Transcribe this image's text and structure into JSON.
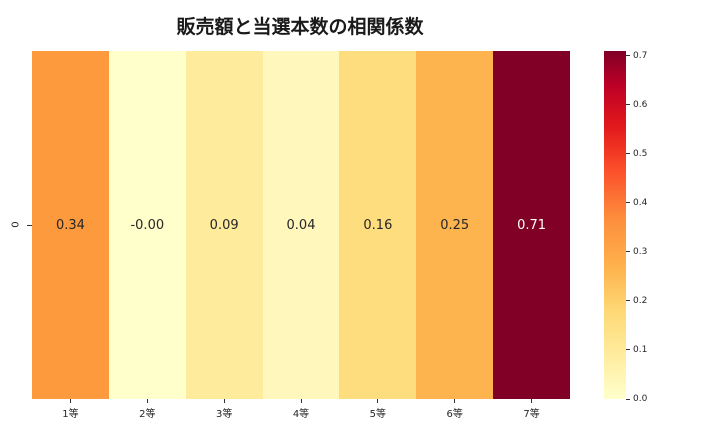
{
  "chart_data": {
    "type": "heatmap",
    "title": "販売額と当選本数の相関係数",
    "xlabel": "",
    "ylabel": "",
    "categories": [
      "1等",
      "2等",
      "3等",
      "4等",
      "5等",
      "6等",
      "7等"
    ],
    "rows": [
      "0"
    ],
    "values": [
      [
        0.34,
        -0.0,
        0.09,
        0.04,
        0.16,
        0.25,
        0.71
      ]
    ],
    "value_labels": [
      "0.34",
      "-0.00",
      "0.09",
      "0.04",
      "0.16",
      "0.25",
      "0.71"
    ],
    "cell_colors": [
      "#fd9a3e",
      "#ffffcc",
      "#feeb9c",
      "#fff7bc",
      "#fedd7f",
      "#feb44e",
      "#800026"
    ],
    "colormap": "YlOrRd",
    "colorbar": {
      "range": [
        0.0,
        0.71
      ],
      "ticks": [
        "0.0",
        "0.1",
        "0.2",
        "0.3",
        "0.4",
        "0.5",
        "0.6",
        "0.7"
      ]
    },
    "grid": false,
    "legend_position": "right colorbar"
  }
}
